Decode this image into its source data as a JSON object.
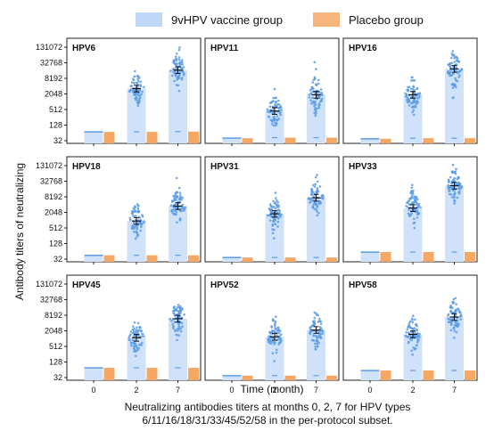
{
  "legend": {
    "vaccine": {
      "label": "9vHPV vaccine group",
      "color": "#bfd8f7"
    },
    "placebo": {
      "label": "Placebo group",
      "color": "#f6b57a"
    }
  },
  "colors": {
    "vaccine_bar": "#cfe2fa",
    "vaccine_dot": "#5b9be6",
    "placebo_bar": "#f5a764",
    "error_bar": "#111111"
  },
  "caption": {
    "line1": "Neutralizing antibodies titers at months 0, 2, 7 for HPV types",
    "line2": "6/11/16/18/31/33/45/52/58 in the per-protocol subset."
  },
  "chart_data": {
    "type": "bar",
    "title": "",
    "xlabel": "Time (month)",
    "ylabel": "Antibody titers of neutralizing",
    "categories": [
      "0",
      "2",
      "7"
    ],
    "y_scale": "log2",
    "y_ticks": [
      32,
      128,
      512,
      2048,
      8192,
      32768,
      131072
    ],
    "ylim": [
      32,
      220000
    ],
    "legend_position": "top",
    "panels": [
      {
        "name": "HPV6",
        "vaccine": [
          null,
          3300,
          17000
        ],
        "placebo": [
          70,
          70,
          72
        ]
      },
      {
        "name": "HPV11",
        "vaccine": [
          40,
          450,
          1900
        ],
        "placebo": [
          40,
          42,
          42
        ]
      },
      {
        "name": "HPV16",
        "vaccine": [
          38,
          1900,
          19000
        ],
        "placebo": [
          38,
          40,
          40
        ]
      },
      {
        "name": "HPV18",
        "vaccine": [
          null,
          950,
          3600
        ],
        "placebo": [
          45,
          45,
          45
        ]
      },
      {
        "name": "HPV31",
        "vaccine": [
          null,
          1800,
          7500
        ],
        "placebo": [
          37,
          37,
          37
        ]
      },
      {
        "name": "HPV33",
        "vaccine": [
          null,
          3000,
          22000
        ],
        "placebo": [
          60,
          60,
          60
        ]
      },
      {
        "name": "HPV45",
        "vaccine": [
          null,
          1100,
          6000
        ],
        "placebo": [
          76,
          76,
          76
        ]
      },
      {
        "name": "HPV52",
        "vaccine": [
          null,
          1200,
          2200
        ],
        "placebo": [
          38,
          38,
          38
        ]
      },
      {
        "name": "HPV58",
        "vaccine": [
          null,
          1500,
          7000
        ],
        "placebo": [
          60,
          60,
          60
        ]
      }
    ]
  }
}
